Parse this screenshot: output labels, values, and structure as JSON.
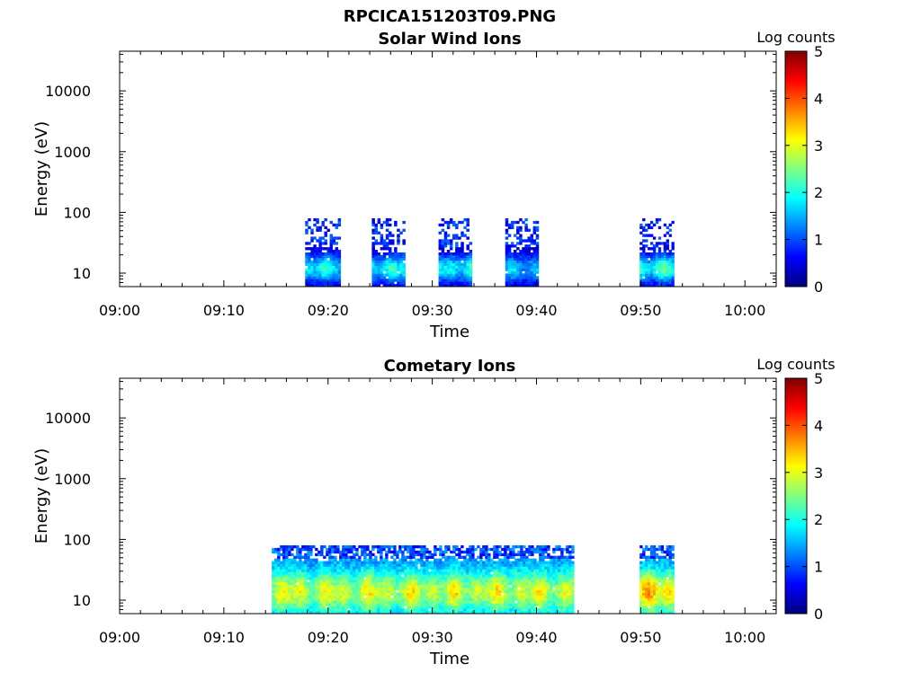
{
  "figure": {
    "title": "RPCICA151203T09.PNG"
  },
  "colormap": [
    "#00007f",
    "#0000ff",
    "#0080ff",
    "#00ffff",
    "#80ff80",
    "#ffff00",
    "#ff8000",
    "#ff0000",
    "#7f0000"
  ],
  "chart_data": [
    {
      "type": "heatmap",
      "title": "Solar Wind Ions",
      "xlabel": "Time",
      "ylabel": "Energy (eV)",
      "x_ticks": [
        "09:00",
        "09:10",
        "09:20",
        "09:30",
        "09:40",
        "09:50",
        "10:00"
      ],
      "y_ticks": [
        "10",
        "100",
        "1000",
        "10000"
      ],
      "y_scale": "log",
      "xlim": [
        "09:00",
        "10:03"
      ],
      "ylim_eV": [
        6,
        45000
      ],
      "colorbar": {
        "label": "Log counts",
        "ticks": [
          "0",
          "1",
          "2",
          "3",
          "4",
          "5"
        ],
        "range": [
          0,
          5
        ]
      },
      "segments": [
        {
          "start": "09:17.8",
          "end": "09:21.2",
          "emin": 6,
          "emax": 80,
          "peak_log": 1.9
        },
        {
          "start": "09:24.2",
          "end": "09:27.4",
          "emin": 6,
          "emax": 80,
          "peak_log": 2.0
        },
        {
          "start": "09:30.6",
          "end": "09:33.8",
          "emin": 6,
          "emax": 80,
          "peak_log": 2.0
        },
        {
          "start": "09:37.0",
          "end": "09:40.2",
          "emin": 6,
          "emax": 80,
          "peak_log": 1.5
        },
        {
          "start": "09:49.9",
          "end": "09:53.2",
          "emin": 6,
          "emax": 80,
          "peak_log": 2.2
        }
      ]
    },
    {
      "type": "heatmap",
      "title": "Cometary Ions",
      "xlabel": "Time",
      "ylabel": "Energy (eV)",
      "x_ticks": [
        "09:00",
        "09:10",
        "09:20",
        "09:30",
        "09:40",
        "09:50",
        "10:00"
      ],
      "y_ticks": [
        "10",
        "100",
        "1000",
        "10000"
      ],
      "y_scale": "log",
      "xlim": [
        "09:00",
        "10:03"
      ],
      "ylim_eV": [
        6,
        45000
      ],
      "colorbar": {
        "label": "Log counts",
        "ticks": [
          "0",
          "1",
          "2",
          "3",
          "4",
          "5"
        ],
        "range": [
          0,
          5
        ]
      },
      "segments": [
        {
          "start": "09:14.6",
          "end": "09:43.6",
          "emin": 6,
          "emax": 80,
          "peak_log": 3.3
        },
        {
          "start": "09:49.9",
          "end": "09:53.2",
          "emin": 6,
          "emax": 80,
          "peak_log": 3.8
        }
      ]
    }
  ]
}
